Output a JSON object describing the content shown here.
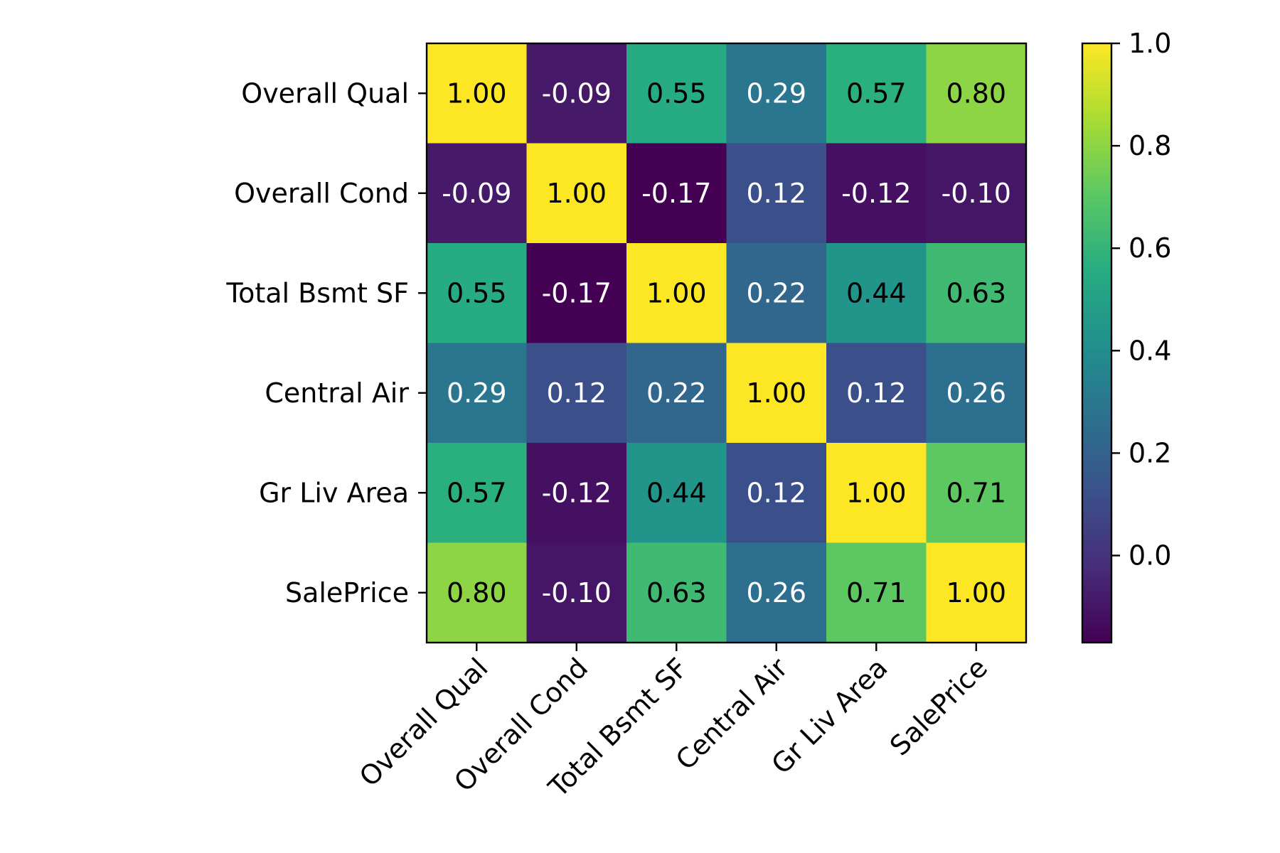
{
  "chart_data": {
    "type": "heatmap",
    "title": "",
    "xlabel": "",
    "ylabel": "",
    "x_categories": [
      "Overall Qual",
      "Overall Cond",
      "Total Bsmt SF",
      "Central Air",
      "Gr Liv Area",
      "SalePrice"
    ],
    "y_categories": [
      "Overall Qual",
      "Overall Cond",
      "Total Bsmt SF",
      "Central Air",
      "Gr Liv Area",
      "SalePrice"
    ],
    "values": [
      [
        1.0,
        -0.09,
        0.55,
        0.29,
        0.57,
        0.8
      ],
      [
        -0.09,
        1.0,
        -0.17,
        0.12,
        -0.12,
        -0.1
      ],
      [
        0.55,
        -0.17,
        1.0,
        0.22,
        0.44,
        0.63
      ],
      [
        0.29,
        0.12,
        0.22,
        1.0,
        0.12,
        0.26
      ],
      [
        0.57,
        -0.12,
        0.44,
        0.12,
        1.0,
        0.71
      ],
      [
        0.8,
        -0.1,
        0.63,
        0.26,
        0.71,
        1.0
      ]
    ],
    "value_format": "2 decimals",
    "colormap": "viridis",
    "colorbar": {
      "range": [
        -0.17,
        1.0
      ],
      "ticks": [
        0.0,
        0.2,
        0.4,
        0.6,
        0.8,
        1.0
      ],
      "tick_labels": [
        "0.0",
        "0.2",
        "0.4",
        "0.6",
        "0.8",
        "1.0"
      ]
    },
    "x_tick_rotation": 45,
    "grid": false,
    "legend": "colorbar-right"
  }
}
